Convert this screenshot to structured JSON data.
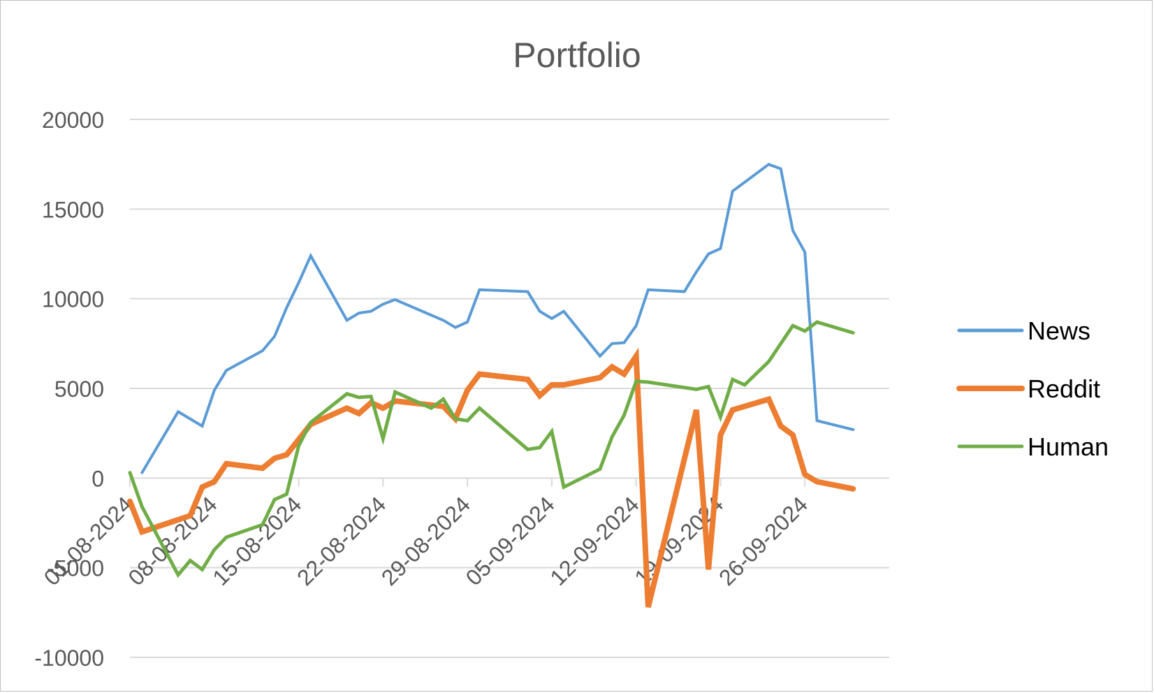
{
  "chart_data": {
    "type": "line",
    "title": "Portfolio",
    "xlabel": "",
    "ylabel": "",
    "ylim": [
      -10000,
      20000
    ],
    "yticks": [
      20000,
      15000,
      10000,
      5000,
      0,
      -5000,
      -10000
    ],
    "ytick_labels": [
      "20000",
      "15000",
      "10000",
      "5000",
      "0",
      "-5000",
      "-10000"
    ],
    "xlim": [
      "2024-08-01",
      "2024-10-03"
    ],
    "xticks": [
      "2024-08-01",
      "2024-08-08",
      "2024-08-15",
      "2024-08-22",
      "2024-08-29",
      "2024-09-05",
      "2024-09-12",
      "2024-09-19",
      "2024-09-26"
    ],
    "xtick_labels": [
      "01-08-2024",
      "08-08-2024",
      "15-08-2024",
      "22-08-2024",
      "29-08-2024",
      "05-09-2024",
      "12-09-2024",
      "19-09-2024",
      "26-09-2024"
    ],
    "grid": true,
    "legend_position": "right",
    "series": [
      {
        "name": "News",
        "color": "#5b9bd5",
        "width": 4,
        "points": [
          [
            "2024-08-02",
            300
          ],
          [
            "2024-08-05",
            3700
          ],
          [
            "2024-08-07",
            2900
          ],
          [
            "2024-08-08",
            4900
          ],
          [
            "2024-08-09",
            6000
          ],
          [
            "2024-08-12",
            7100
          ],
          [
            "2024-08-13",
            7900
          ],
          [
            "2024-08-14",
            9500
          ],
          [
            "2024-08-15",
            10900
          ],
          [
            "2024-08-16",
            12400
          ],
          [
            "2024-08-19",
            8800
          ],
          [
            "2024-08-20",
            9200
          ],
          [
            "2024-08-21",
            9300
          ],
          [
            "2024-08-22",
            9700
          ],
          [
            "2024-08-23",
            9950
          ],
          [
            "2024-08-27",
            8800
          ],
          [
            "2024-08-28",
            8400
          ],
          [
            "2024-08-29",
            8700
          ],
          [
            "2024-08-30",
            10500
          ],
          [
            "2024-09-03",
            10400
          ],
          [
            "2024-09-04",
            9300
          ],
          [
            "2024-09-05",
            8900
          ],
          [
            "2024-09-06",
            9300
          ],
          [
            "2024-09-09",
            6800
          ],
          [
            "2024-09-10",
            7500
          ],
          [
            "2024-09-11",
            7550
          ],
          [
            "2024-09-12",
            8500
          ],
          [
            "2024-09-13",
            10500
          ],
          [
            "2024-09-16",
            10400
          ],
          [
            "2024-09-17",
            11500
          ],
          [
            "2024-09-18",
            12500
          ],
          [
            "2024-09-19",
            12800
          ],
          [
            "2024-09-20",
            16000
          ],
          [
            "2024-09-23",
            17500
          ],
          [
            "2024-09-24",
            17250
          ],
          [
            "2024-09-25",
            13800
          ],
          [
            "2024-09-26",
            12600
          ],
          [
            "2024-09-27",
            3200
          ],
          [
            "2024-09-30",
            2700
          ]
        ]
      },
      {
        "name": "Reddit",
        "color": "#ed7d31",
        "width": 8,
        "points": [
          [
            "2024-08-01",
            -1300
          ],
          [
            "2024-08-02",
            -3000
          ],
          [
            "2024-08-06",
            -2100
          ],
          [
            "2024-08-07",
            -500
          ],
          [
            "2024-08-08",
            -200
          ],
          [
            "2024-08-09",
            800
          ],
          [
            "2024-08-12",
            550
          ],
          [
            "2024-08-13",
            1100
          ],
          [
            "2024-08-14",
            1300
          ],
          [
            "2024-08-16",
            3000
          ],
          [
            "2024-08-19",
            3900
          ],
          [
            "2024-08-20",
            3600
          ],
          [
            "2024-08-21",
            4200
          ],
          [
            "2024-08-22",
            3900
          ],
          [
            "2024-08-23",
            4300
          ],
          [
            "2024-08-27",
            4000
          ],
          [
            "2024-08-28",
            3300
          ],
          [
            "2024-08-29",
            4900
          ],
          [
            "2024-08-30",
            5800
          ],
          [
            "2024-09-03",
            5500
          ],
          [
            "2024-09-04",
            4600
          ],
          [
            "2024-09-05",
            5200
          ],
          [
            "2024-09-06",
            5200
          ],
          [
            "2024-09-09",
            5600
          ],
          [
            "2024-09-10",
            6200
          ],
          [
            "2024-09-11",
            5800
          ],
          [
            "2024-09-12",
            6800
          ],
          [
            "2024-09-13",
            -7200
          ],
          [
            "2024-09-17",
            3800
          ],
          [
            "2024-09-18",
            -5100
          ],
          [
            "2024-09-19",
            2400
          ],
          [
            "2024-09-20",
            3800
          ],
          [
            "2024-09-23",
            4400
          ],
          [
            "2024-09-24",
            2900
          ],
          [
            "2024-09-25",
            2400
          ],
          [
            "2024-09-26",
            200
          ],
          [
            "2024-09-27",
            -200
          ],
          [
            "2024-09-30",
            -600
          ]
        ]
      },
      {
        "name": "Human",
        "color": "#70ad47",
        "width": 5,
        "points": [
          [
            "2024-08-01",
            300
          ],
          [
            "2024-08-02",
            -1600
          ],
          [
            "2024-08-05",
            -5400
          ],
          [
            "2024-08-06",
            -4600
          ],
          [
            "2024-08-07",
            -5100
          ],
          [
            "2024-08-08",
            -4000
          ],
          [
            "2024-08-09",
            -3300
          ],
          [
            "2024-08-12",
            -2600
          ],
          [
            "2024-08-13",
            -1200
          ],
          [
            "2024-08-14",
            -900
          ],
          [
            "2024-08-15",
            1800
          ],
          [
            "2024-08-16",
            3100
          ],
          [
            "2024-08-19",
            4700
          ],
          [
            "2024-08-20",
            4500
          ],
          [
            "2024-08-21",
            4550
          ],
          [
            "2024-08-22",
            2200
          ],
          [
            "2024-08-23",
            4800
          ],
          [
            "2024-08-26",
            3900
          ],
          [
            "2024-08-27",
            4400
          ],
          [
            "2024-08-28",
            3300
          ],
          [
            "2024-08-29",
            3200
          ],
          [
            "2024-08-30",
            3900
          ],
          [
            "2024-09-03",
            1600
          ],
          [
            "2024-09-04",
            1700
          ],
          [
            "2024-09-05",
            2600
          ],
          [
            "2024-09-06",
            -500
          ],
          [
            "2024-09-09",
            500
          ],
          [
            "2024-09-10",
            2300
          ],
          [
            "2024-09-11",
            3500
          ],
          [
            "2024-09-12",
            5400
          ],
          [
            "2024-09-13",
            5350
          ],
          [
            "2024-09-17",
            4950
          ],
          [
            "2024-09-18",
            5100
          ],
          [
            "2024-09-19",
            3400
          ],
          [
            "2024-09-20",
            5500
          ],
          [
            "2024-09-21",
            5200
          ],
          [
            "2024-09-23",
            6500
          ],
          [
            "2024-09-25",
            8500
          ],
          [
            "2024-09-26",
            8200
          ],
          [
            "2024-09-27",
            8700
          ],
          [
            "2024-09-30",
            8100
          ]
        ]
      }
    ]
  }
}
